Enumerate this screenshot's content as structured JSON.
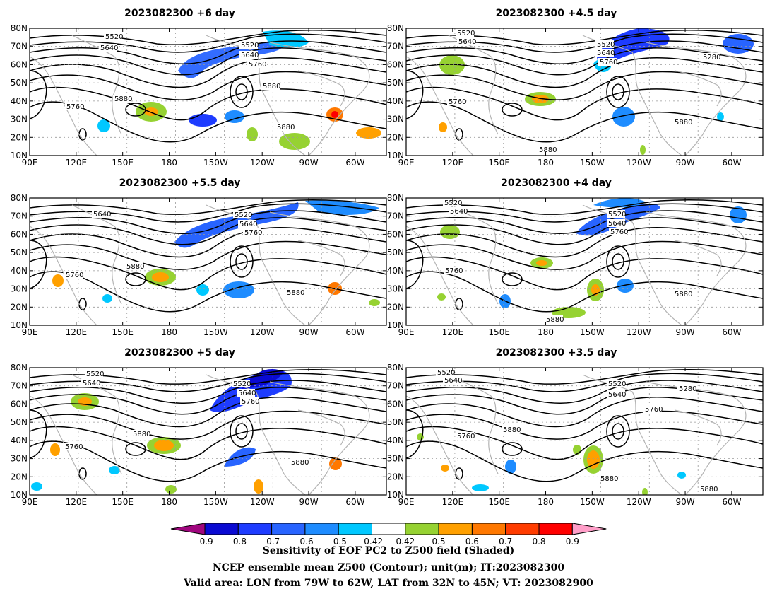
{
  "panels": [
    {
      "title": "2023082300 +6 day"
    },
    {
      "title": "2023082300 +4.5 day"
    },
    {
      "title": "2023082300 +5.5 day"
    },
    {
      "title": "2023082300 +4 day"
    },
    {
      "title": "2023082300 +5 day"
    },
    {
      "title": "2023082300 +3.5 day"
    }
  ],
  "axes": {
    "lat_labels": [
      "10N",
      "20N",
      "30N",
      "40N",
      "50N",
      "60N",
      "70N",
      "80N"
    ],
    "lon_labels": [
      "90E",
      "120E",
      "150E",
      "180",
      "150W",
      "120W",
      "90W",
      "60W"
    ],
    "lat_range": [
      10,
      80
    ],
    "lon_range": [
      90,
      310
    ]
  },
  "contour_labels": [
    "5280",
    "5520",
    "5640",
    "5760",
    "5880"
  ],
  "colorbar": {
    "ticks": [
      "-0.9",
      "-0.8",
      "-0.7",
      "-0.6",
      "-0.5",
      "-0.42",
      "0.42",
      "0.5",
      "0.6",
      "0.7",
      "0.8",
      "0.9"
    ],
    "colors": [
      "#a0067e",
      "#0a0ad2",
      "#1e3cff",
      "#2864ff",
      "#1e8cff",
      "#00c8ff",
      "#ffffff",
      "#96d232",
      "#ffa000",
      "#ff7800",
      "#ff3c00",
      "#ff0000",
      "#ff9ec8"
    ]
  },
  "caption": {
    "line1": "Sensitivity of EOF PC2 to Z500 field (Shaded)",
    "line2": "NCEP ensemble mean Z500 (Contour); unit(m); IT:2023082300",
    "line3": "Valid area: LON from 79W to 62W, LAT from 32N to 45N; VT: 2023082900"
  }
}
